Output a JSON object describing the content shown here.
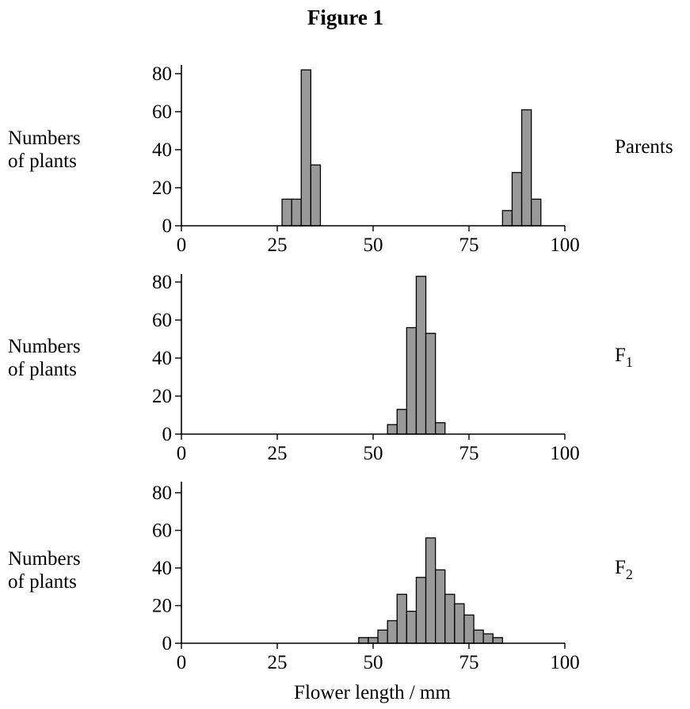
{
  "figure": {
    "title": "Figure 1",
    "ylabel_line1": "Numbers",
    "ylabel_line2": "of plants",
    "xlabel": "Flower length / mm"
  },
  "chart_data": [
    {
      "type": "bar",
      "name": "Parents",
      "xlabel": "Flower length / mm",
      "ylabel": "Numbers of plants",
      "xlim": [
        0,
        100
      ],
      "ylim": [
        0,
        85
      ],
      "xticks": [
        0,
        25,
        50,
        75,
        100
      ],
      "yticks": [
        0,
        20,
        40,
        60,
        80
      ],
      "bin_width": 2.5,
      "bins": [
        {
          "x": 27.5,
          "value": 14
        },
        {
          "x": 30,
          "value": 14
        },
        {
          "x": 32.5,
          "value": 82
        },
        {
          "x": 35,
          "value": 32
        },
        {
          "x": 85,
          "value": 8
        },
        {
          "x": 87.5,
          "value": 28
        },
        {
          "x": 90,
          "value": 61
        },
        {
          "x": 92.5,
          "value": 14
        }
      ]
    },
    {
      "type": "bar",
      "name": "F1",
      "xlabel": "Flower length / mm",
      "ylabel": "Numbers of plants",
      "xlim": [
        0,
        100
      ],
      "ylim": [
        0,
        85
      ],
      "xticks": [
        0,
        25,
        50,
        75,
        100
      ],
      "yticks": [
        0,
        20,
        40,
        60,
        80
      ],
      "bin_width": 2.5,
      "bins": [
        {
          "x": 55,
          "value": 5
        },
        {
          "x": 57.5,
          "value": 13
        },
        {
          "x": 60,
          "value": 56
        },
        {
          "x": 62.5,
          "value": 83
        },
        {
          "x": 65,
          "value": 53
        },
        {
          "x": 67.5,
          "value": 6
        }
      ]
    },
    {
      "type": "bar",
      "name": "F2",
      "xlabel": "Flower length / mm",
      "ylabel": "Numbers of plants",
      "xlim": [
        0,
        100
      ],
      "ylim": [
        0,
        85
      ],
      "xticks": [
        0,
        25,
        50,
        75,
        100
      ],
      "yticks": [
        0,
        20,
        40,
        60,
        80
      ],
      "bin_width": 2.5,
      "bins": [
        {
          "x": 47.5,
          "value": 3
        },
        {
          "x": 50,
          "value": 3
        },
        {
          "x": 52.5,
          "value": 7
        },
        {
          "x": 55,
          "value": 12
        },
        {
          "x": 57.5,
          "value": 26
        },
        {
          "x": 60,
          "value": 17
        },
        {
          "x": 62.5,
          "value": 35
        },
        {
          "x": 65,
          "value": 56
        },
        {
          "x": 67.5,
          "value": 39
        },
        {
          "x": 70,
          "value": 26
        },
        {
          "x": 72.5,
          "value": 21
        },
        {
          "x": 75,
          "value": 15
        },
        {
          "x": 77.5,
          "value": 7
        },
        {
          "x": 80,
          "value": 5
        },
        {
          "x": 82.5,
          "value": 3
        }
      ]
    }
  ]
}
